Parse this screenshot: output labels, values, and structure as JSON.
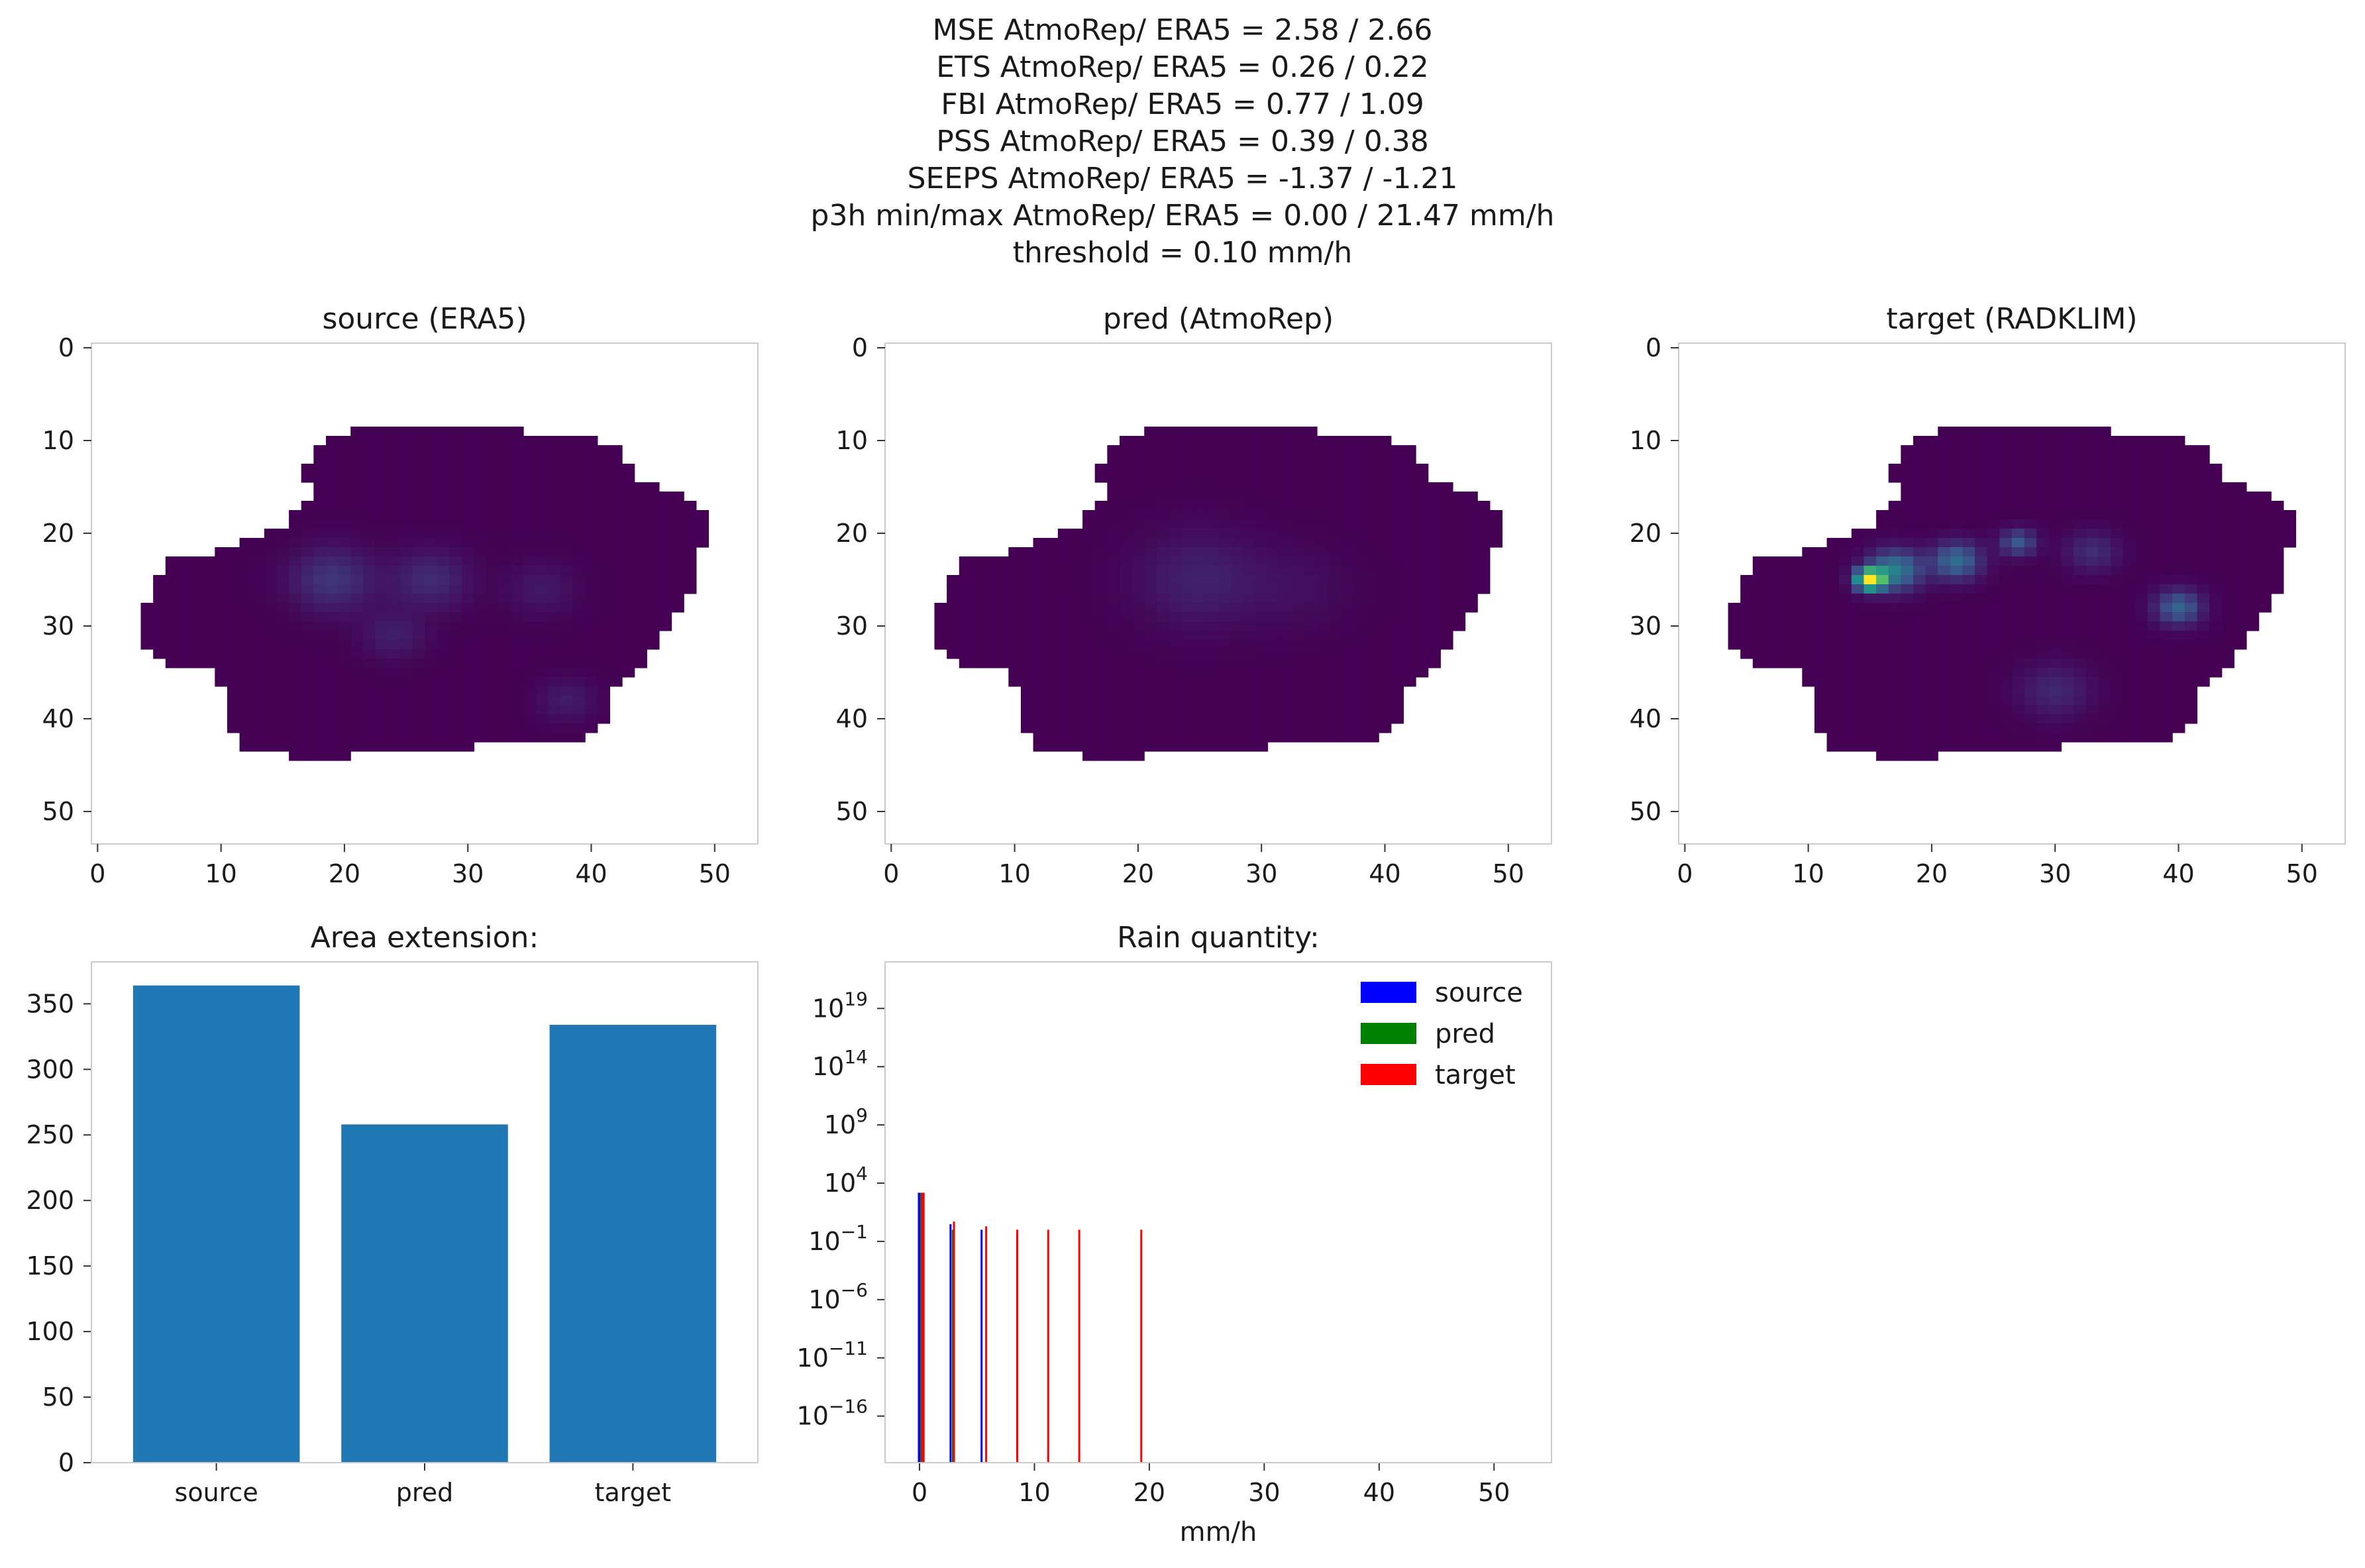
{
  "suptitle": [
    "MSE AtmoRep/ ERA5 = 2.58 / 2.66",
    "ETS AtmoRep/ ERA5 = 0.26 / 0.22",
    "FBI AtmoRep/ ERA5 = 0.77 / 1.09",
    "PSS AtmoRep/ ERA5 = 0.39 / 0.38",
    "SEEPS AtmoRep/ ERA5 = -1.37 / -1.21",
    "p3h min/max AtmoRep/ ERA5 = 0.00 / 21.47 mm/h",
    "threshold = 0.10 mm/h"
  ],
  "colors": {
    "mask_base": "#440154",
    "bar": "#1f77b4",
    "source": "#0000ff",
    "pred": "#008000",
    "target": "#ff0000"
  },
  "chart_data": [
    {
      "type": "heatmap",
      "title": "source (ERA5)",
      "xticks": [
        "0",
        "10",
        "20",
        "30",
        "40",
        "50"
      ],
      "yticks": [
        "0",
        "10",
        "20",
        "30",
        "40",
        "50"
      ],
      "xlim": [
        -0.5,
        53.5
      ],
      "ylim": [
        53.5,
        -0.5
      ],
      "note_values": "mask of precipitation field, low values (dark purple) with weak band near row 25"
    },
    {
      "type": "heatmap",
      "title": "pred (AtmoRep)",
      "xticks": [
        "0",
        "10",
        "20",
        "30",
        "40",
        "50"
      ],
      "yticks": [
        "0",
        "10",
        "20",
        "30",
        "40",
        "50"
      ],
      "xlim": [
        -0.5,
        53.5
      ],
      "ylim": [
        53.5,
        -0.5
      ]
    },
    {
      "type": "heatmap",
      "title": "target (RADKLIM)",
      "xticks": [
        "0",
        "10",
        "20",
        "30",
        "40",
        "50"
      ],
      "yticks": [
        "0",
        "10",
        "20",
        "30",
        "40",
        "50"
      ],
      "xlim": [
        -0.5,
        53.5
      ],
      "ylim": [
        53.5,
        -0.5
      ]
    },
    {
      "type": "bar",
      "title": "Area extension:",
      "categories": [
        "source",
        "pred",
        "target"
      ],
      "values": [
        364,
        258,
        334
      ],
      "yticks": [
        "0",
        "50",
        "100",
        "150",
        "200",
        "250",
        "300",
        "350"
      ],
      "ylim": [
        0,
        382
      ]
    },
    {
      "type": "bar",
      "title": "Rain quantity:",
      "xlabel": "mm/h",
      "yscale": "log",
      "xticks": [
        "0",
        "10",
        "20",
        "30",
        "40",
        "50"
      ],
      "xlim": [
        -3,
        55
      ],
      "ylim_log10": [
        -20,
        23
      ],
      "ytick_exponents": [
        "19",
        "14",
        "9",
        "4",
        "−1",
        "−6",
        "−11",
        "−16"
      ],
      "legend": {
        "position": "upper right",
        "entries": [
          "source",
          "pred",
          "target"
        ]
      },
      "series": [
        {
          "name": "source",
          "x": [
            0.0,
            2.7,
            5.4
          ],
          "y": [
            1500,
            3,
            1
          ]
        },
        {
          "name": "pred",
          "x": [
            0.2,
            2.9
          ],
          "y": [
            1500,
            1
          ]
        },
        {
          "name": "target",
          "x": [
            0.3,
            3.0,
            5.8,
            8.5,
            11.2,
            13.9,
            19.3
          ],
          "y": [
            1500,
            5,
            2,
            1,
            1,
            1,
            1
          ]
        }
      ]
    }
  ]
}
